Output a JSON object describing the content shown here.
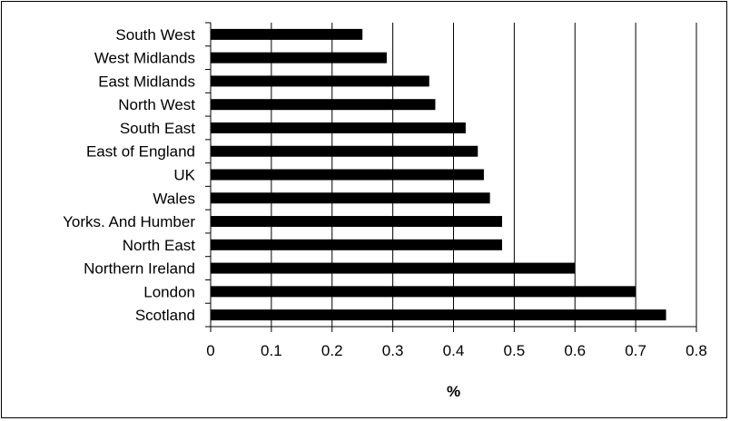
{
  "chart_data": {
    "type": "bar",
    "orientation": "horizontal",
    "categories": [
      "South West",
      "West Midlands",
      "East Midlands",
      "North West",
      "South East",
      "East of England",
      "UK",
      "Wales",
      "Yorks. And Humber",
      "North East",
      "Northern Ireland",
      "London",
      "Scotland"
    ],
    "values": [
      0.25,
      0.29,
      0.36,
      0.37,
      0.42,
      0.44,
      0.45,
      0.46,
      0.48,
      0.48,
      0.6,
      0.7,
      0.75
    ],
    "xlabel": "%",
    "xlim": [
      0,
      0.8
    ],
    "xticks": [
      "0",
      "0.1",
      "0.2",
      "0.3",
      "0.4",
      "0.5",
      "0.6",
      "0.7",
      "0.8"
    ],
    "grid": "vertical",
    "legend": "none",
    "bar_color": "#000000",
    "grid_color": "#000000"
  }
}
